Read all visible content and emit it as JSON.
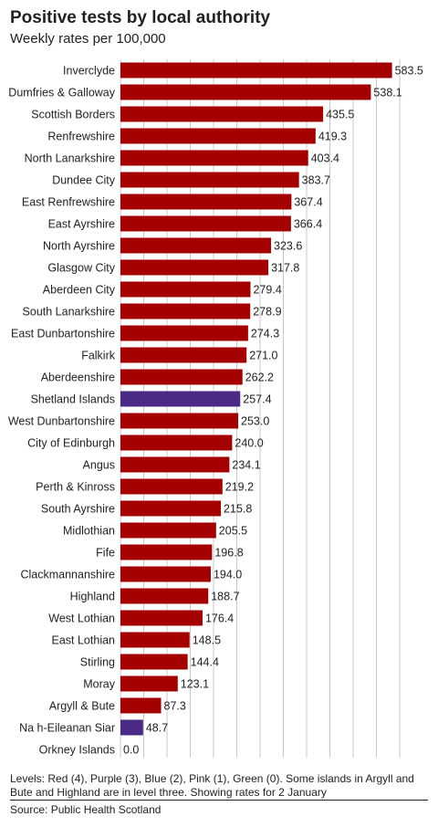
{
  "chart_data": {
    "type": "bar",
    "orientation": "horizontal",
    "title": "Positive tests by local authority",
    "subtitle": "Weekly rates per 100,000",
    "xlim": [
      0,
      600
    ],
    "grid": true,
    "colors": {
      "red": "#a50000",
      "purple": "#4b2a85",
      "grid": "#c8c8c8"
    },
    "categories": [
      "Inverclyde",
      "Dumfries & Galloway",
      "Scottish Borders",
      "Renfrewshire",
      "North Lanarkshire",
      "Dundee City",
      "East Renfrewshire",
      "East Ayrshire",
      "North Ayrshire",
      "Glasgow City",
      "Aberdeen City",
      "South Lanarkshire",
      "East Dunbartonshire",
      "Falkirk",
      "Aberdeenshire",
      "Shetland Islands",
      "West Dunbartonshire",
      "City of Edinburgh",
      "Angus",
      "Perth & Kinross",
      "South Ayrshire",
      "Midlothian",
      "Fife",
      "Clackmannanshire",
      "Highland",
      "West Lothian",
      "East Lothian",
      "Stirling",
      "Moray",
      "Argyll & Bute",
      "Na h-Eileanan Siar",
      "Orkney Islands"
    ],
    "values": [
      583.5,
      538.1,
      435.5,
      419.3,
      403.4,
      383.7,
      367.4,
      366.4,
      323.6,
      317.8,
      279.4,
      278.9,
      274.3,
      271.0,
      262.2,
      257.4,
      253.0,
      240.0,
      234.1,
      219.2,
      215.8,
      205.5,
      196.8,
      194.0,
      188.7,
      176.4,
      148.5,
      144.4,
      123.1,
      87.3,
      48.7,
      0.0
    ],
    "value_labels": [
      "583.5",
      "538.1",
      "435.5",
      "419.3",
      "403.4",
      "383.7",
      "367.4",
      "366.4",
      "323.6",
      "317.8",
      "279.4",
      "278.9",
      "274.3",
      "271.0",
      "262.2",
      "257.4",
      "253.0",
      "240.0",
      "234.1",
      "219.2",
      "215.8",
      "205.5",
      "196.8",
      "194.0",
      "188.7",
      "176.4",
      "148.5",
      "144.4",
      "123.1",
      "87.3",
      "48.7",
      "0.0"
    ],
    "bar_color_keys": [
      "red",
      "red",
      "red",
      "red",
      "red",
      "red",
      "red",
      "red",
      "red",
      "red",
      "red",
      "red",
      "red",
      "red",
      "red",
      "purple",
      "red",
      "red",
      "red",
      "red",
      "red",
      "red",
      "red",
      "red",
      "red",
      "red",
      "red",
      "red",
      "red",
      "red",
      "purple",
      "red"
    ]
  },
  "footnote": "Levels: Red (4), Purple (3), Blue (2), Pink (1), Green (0). Some islands in Argyll and Bute and Highland are in level three. Showing rates for 2 January",
  "source": "Source: Public Health Scotland"
}
